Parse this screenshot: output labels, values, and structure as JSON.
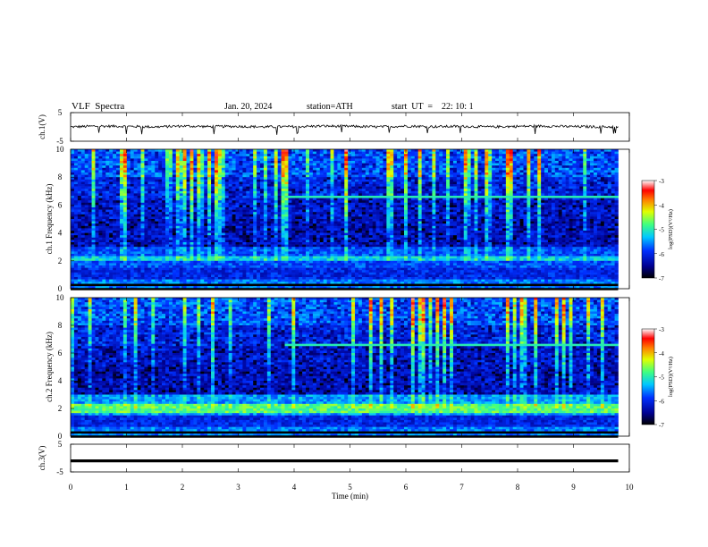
{
  "header": {
    "title": "VLF  Spectra",
    "date": "Jan. 20, 2024",
    "station": "station=ATH",
    "start": "start  UT  =    22: 10: 1"
  },
  "colors": {
    "colormap": [
      "#000080",
      "#0000ff",
      "#0080ff",
      "#00ffff",
      "#80ff80",
      "#ffff00",
      "#ff8000",
      "#ff0000",
      "#800000"
    ],
    "trace": "#000000"
  },
  "chart_data": [
    {
      "type": "line",
      "name": "ch1-waveform",
      "ylabel": "ch.1(V)",
      "ylim": [
        -5,
        5
      ],
      "yticks": [
        "5",
        "-5"
      ],
      "x": [
        0,
        0.5,
        1,
        1.5,
        2,
        2.5,
        3,
        3.5,
        4,
        4.5,
        5,
        5.5,
        6,
        6.5,
        7,
        7.5,
        8,
        8.5,
        9,
        9.8
      ],
      "values": [
        0.0,
        0.3,
        0.2,
        0.0,
        0.3,
        0.1,
        0.2,
        0.0,
        0.1,
        0.3,
        0.2,
        0.0,
        0.3,
        0.1,
        0.2,
        0.0,
        0.2,
        0.3,
        0.1,
        0.0
      ]
    },
    {
      "type": "heatmap",
      "name": "ch1-spectrogram",
      "ylabel": "ch.1 Frequency  (kHz)",
      "ylim": [
        0,
        10
      ],
      "yticks": [
        "0",
        "2",
        "4",
        "6",
        "8",
        "10"
      ],
      "colorbar": {
        "label": "log(PSD)(V²/Hz)",
        "range": [
          -7,
          -3
        ],
        "ticks": [
          "-3",
          "-4",
          "-5",
          "-6",
          "-7"
        ]
      }
    },
    {
      "type": "heatmap",
      "name": "ch2-spectrogram",
      "ylabel": "ch.2 Frequency  (kHz)",
      "ylim": [
        0,
        10
      ],
      "yticks": [
        "0",
        "2",
        "4",
        "6",
        "8",
        "10"
      ],
      "colorbar": {
        "label": "log(PSD)(V²/Hz)",
        "range": [
          -7,
          -3
        ],
        "ticks": [
          "-3",
          "-4",
          "-5",
          "-6",
          "-7"
        ]
      }
    },
    {
      "type": "line",
      "name": "ch3-waveform",
      "ylabel": "ch.3(V)",
      "ylim": [
        -5,
        5
      ],
      "yticks": [
        "5",
        "-5"
      ],
      "x": [
        0,
        9.8
      ],
      "values": [
        -1,
        -1
      ]
    }
  ],
  "xaxis": {
    "label": "Time  (min)",
    "xlim": [
      0,
      10
    ],
    "ticks": [
      "0",
      "1",
      "2",
      "3",
      "4",
      "5",
      "6",
      "7",
      "8",
      "9",
      "10"
    ]
  }
}
